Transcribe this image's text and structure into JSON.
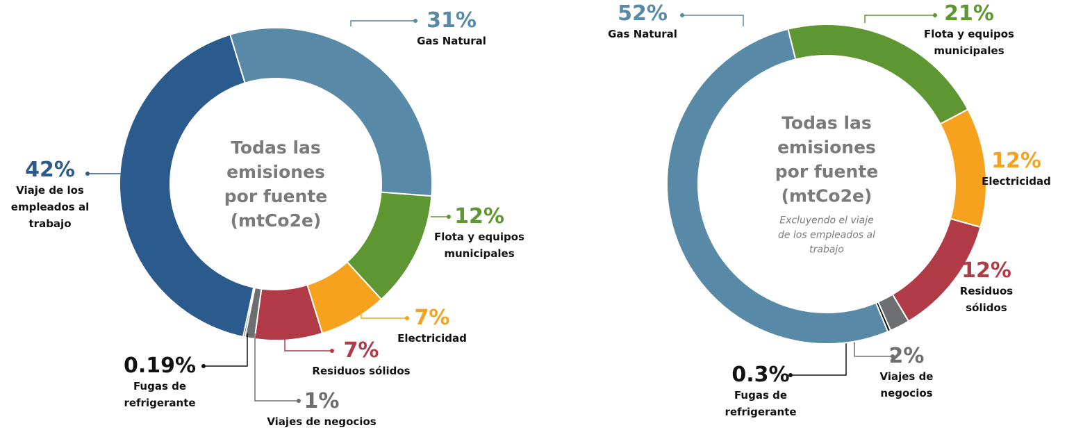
{
  "chart_data": [
    {
      "type": "pie",
      "title": "Todas las emisiones por fuente (mtCo2e)",
      "categories": [
        "Gas Natural",
        "Flota y equipos municipales",
        "Electricidad",
        "Residuos sólidos",
        "Viajes de negocios",
        "Fugas de refrigerante",
        "Viaje de los empleados al trabajo"
      ],
      "values": [
        31,
        12,
        7,
        7,
        1,
        0.19,
        42
      ],
      "value_labels": [
        "31%",
        "12%",
        "7%",
        "7%",
        "1%",
        "0.19%",
        "42%"
      ],
      "colors": [
        "#5889a6",
        "#5e9732",
        "#f6a21e",
        "#b03a45",
        "#6d6e70",
        "#111111",
        "#2b5b8c"
      ]
    },
    {
      "type": "pie",
      "title": "Todas las emisiones por fuente (mtCo2e)",
      "subtitle": "Excluyendo el viaje de los empleados al trabajo",
      "categories": [
        "Flota y equipos municipales",
        "Electricidad",
        "Residuos sólidos",
        "Viajes de negocios",
        "Fugas de refrigerante",
        "Gas Natural"
      ],
      "values": [
        21,
        12,
        12,
        2,
        0.3,
        52
      ],
      "value_labels": [
        "21%",
        "12%",
        "12%",
        "2%",
        "0.3%",
        "52%"
      ],
      "colors": [
        "#5e9732",
        "#f6a21e",
        "#b03a45",
        "#6d6e70",
        "#111111",
        "#5889a6"
      ]
    }
  ]
}
